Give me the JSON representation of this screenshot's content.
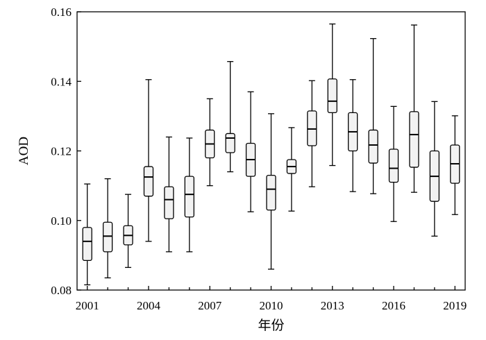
{
  "chart_data": {
    "type": "boxplot",
    "xlabel": "年份",
    "ylabel": "AOD",
    "ylim": [
      0.08,
      0.16
    ],
    "xlim": [
      2000.5,
      2019.5
    ],
    "y_ticks": [
      "0.08",
      "0.10",
      "0.12",
      "0.14",
      "0.16"
    ],
    "x_ticks": [
      "2001",
      "2004",
      "2007",
      "2010",
      "2013",
      "2016",
      "2019"
    ],
    "y_tick_values": [
      0.08,
      0.1,
      0.12,
      0.14,
      0.16
    ],
    "x_tick_values": [
      2001,
      2004,
      2007,
      2010,
      2013,
      2016,
      2019
    ],
    "grid": false,
    "box_fill": "#f2f2f2",
    "boxes": [
      {
        "year": 2001,
        "min": 0.0815,
        "q1": 0.0885,
        "median": 0.094,
        "q3": 0.098,
        "max": 0.1105
      },
      {
        "year": 2002,
        "min": 0.0835,
        "q1": 0.091,
        "median": 0.0955,
        "q3": 0.0995,
        "max": 0.112
      },
      {
        "year": 2003,
        "min": 0.0865,
        "q1": 0.093,
        "median": 0.0957,
        "q3": 0.0985,
        "max": 0.1075
      },
      {
        "year": 2004,
        "min": 0.094,
        "q1": 0.107,
        "median": 0.1125,
        "q3": 0.1155,
        "max": 0.1405
      },
      {
        "year": 2005,
        "min": 0.091,
        "q1": 0.1005,
        "median": 0.106,
        "q3": 0.1097,
        "max": 0.124
      },
      {
        "year": 2006,
        "min": 0.091,
        "q1": 0.101,
        "median": 0.1075,
        "q3": 0.1127,
        "max": 0.1237
      },
      {
        "year": 2007,
        "min": 0.11,
        "q1": 0.118,
        "median": 0.122,
        "q3": 0.126,
        "max": 0.135
      },
      {
        "year": 2008,
        "min": 0.114,
        "q1": 0.1195,
        "median": 0.1237,
        "q3": 0.125,
        "max": 0.1457
      },
      {
        "year": 2009,
        "min": 0.1025,
        "q1": 0.1127,
        "median": 0.1175,
        "q3": 0.1222,
        "max": 0.137
      },
      {
        "year": 2010,
        "min": 0.086,
        "q1": 0.103,
        "median": 0.109,
        "q3": 0.113,
        "max": 0.1307
      },
      {
        "year": 2011,
        "min": 0.1027,
        "q1": 0.1135,
        "median": 0.1155,
        "q3": 0.1175,
        "max": 0.1267
      },
      {
        "year": 2012,
        "min": 0.1097,
        "q1": 0.1215,
        "median": 0.1263,
        "q3": 0.1315,
        "max": 0.1402
      },
      {
        "year": 2013,
        "min": 0.1158,
        "q1": 0.131,
        "median": 0.1343,
        "q3": 0.1407,
        "max": 0.1565
      },
      {
        "year": 2014,
        "min": 0.1083,
        "q1": 0.12,
        "median": 0.1255,
        "q3": 0.131,
        "max": 0.1405
      },
      {
        "year": 2015,
        "min": 0.1077,
        "q1": 0.1165,
        "median": 0.1217,
        "q3": 0.126,
        "max": 0.1523
      },
      {
        "year": 2016,
        "min": 0.0997,
        "q1": 0.111,
        "median": 0.115,
        "q3": 0.1205,
        "max": 0.1328
      },
      {
        "year": 2017,
        "min": 0.1081,
        "q1": 0.1153,
        "median": 0.1247,
        "q3": 0.1313,
        "max": 0.1562
      },
      {
        "year": 2018,
        "min": 0.0955,
        "q1": 0.1055,
        "median": 0.1127,
        "q3": 0.12,
        "max": 0.1342
      },
      {
        "year": 2019,
        "min": 0.1017,
        "q1": 0.1107,
        "median": 0.1163,
        "q3": 0.1217,
        "max": 0.1301
      }
    ]
  }
}
